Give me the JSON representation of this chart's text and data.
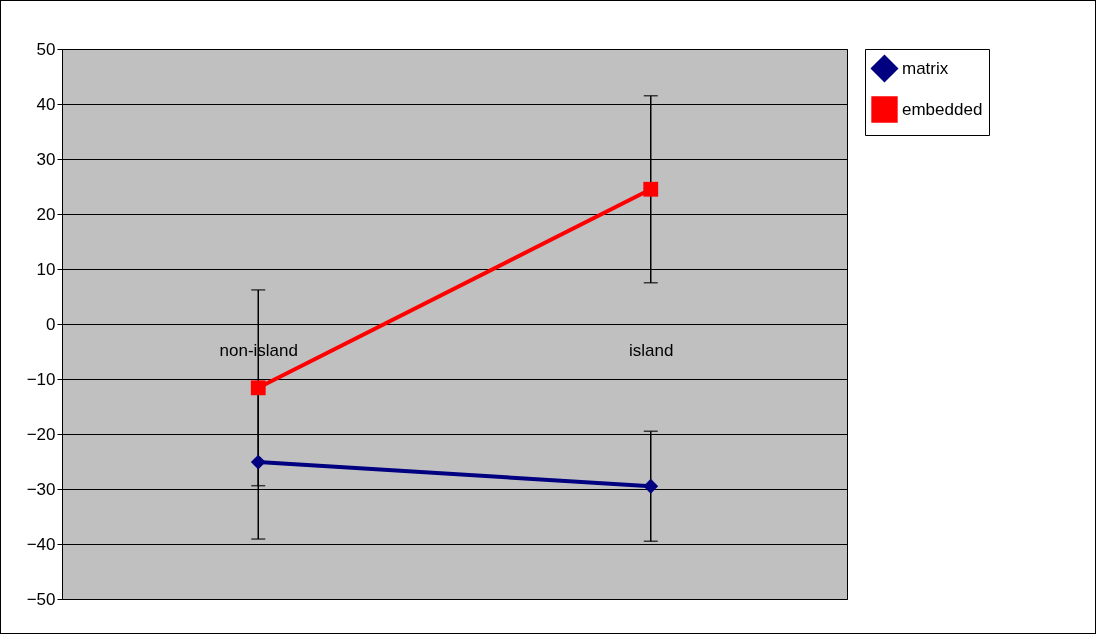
{
  "chart_data": {
    "type": "line",
    "categories": [
      "non-island",
      "island"
    ],
    "series": [
      {
        "name": "matrix",
        "color": "#000080",
        "marker": "diamond",
        "values": [
          -25.1,
          -29.5
        ],
        "errors": [
          14,
          10
        ]
      },
      {
        "name": "embedded",
        "color": "#ff0000",
        "marker": "square",
        "values": [
          -11.6,
          24.5
        ],
        "errors": [
          17.8,
          17
        ]
      }
    ],
    "ylim": [
      -50,
      50
    ],
    "yticks": [
      -50,
      -40,
      -30,
      -20,
      -10,
      0,
      10,
      20,
      30,
      40,
      50
    ],
    "grid": "y",
    "legend": "right"
  }
}
